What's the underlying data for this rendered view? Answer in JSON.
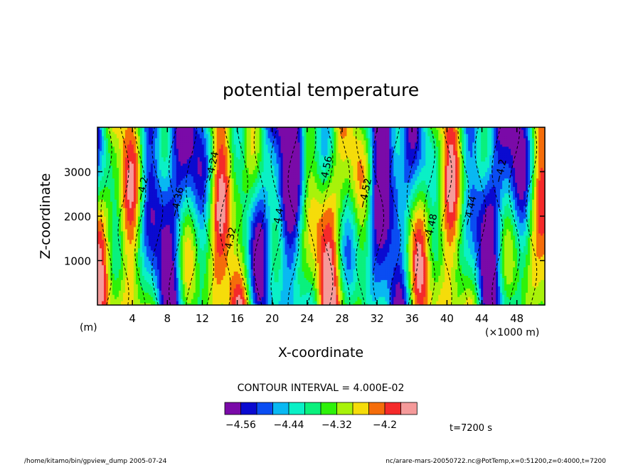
{
  "chart_data": {
    "type": "heatmap",
    "title": "potential temperature",
    "xlabel": "X-coordinate",
    "ylabel": "Z-coordinate",
    "x_unit_left": "(m)",
    "x_unit_right": "(×1000 m)",
    "x_ticks": [
      4,
      8,
      12,
      16,
      20,
      24,
      28,
      32,
      36,
      40,
      44,
      48
    ],
    "y_ticks": [
      1000,
      2000,
      3000
    ],
    "xlim": [
      0,
      51.2
    ],
    "ylim": [
      0,
      4000
    ],
    "contour_interval": "CONTOUR INTERVAL = 4.000E-02",
    "colorbar": {
      "levels": [
        "−4.56",
        "−4.44",
        "−4.32",
        "−4.2"
      ],
      "level_values": [
        -4.56,
        -4.44,
        -4.32,
        -4.2
      ],
      "colors": [
        "#7a0aa8",
        "#0a0ad0",
        "#0a4df2",
        "#09b8f2",
        "#0af0c6",
        "#0af07d",
        "#2ef20a",
        "#a8f20a",
        "#f5dc0a",
        "#f56d0a",
        "#f52a2a",
        "#f59a9a"
      ],
      "vmin": -4.6,
      "vmax": -4.12
    },
    "contour_labels": [
      "−4.2",
      "−4.36",
      "−4.24",
      "−4.32",
      "−4.4",
      "−4.56",
      "−4.52",
      "−4.48",
      "−4.44"
    ],
    "annotation_time": "t=7200 s"
  },
  "footer": {
    "left": "/home/kitamo/bin/gpview_dump  2005-07-24",
    "right": "nc/arare-mars-20050722.nc@PotTemp,x=0:51200,z=0:4000,t=7200"
  }
}
